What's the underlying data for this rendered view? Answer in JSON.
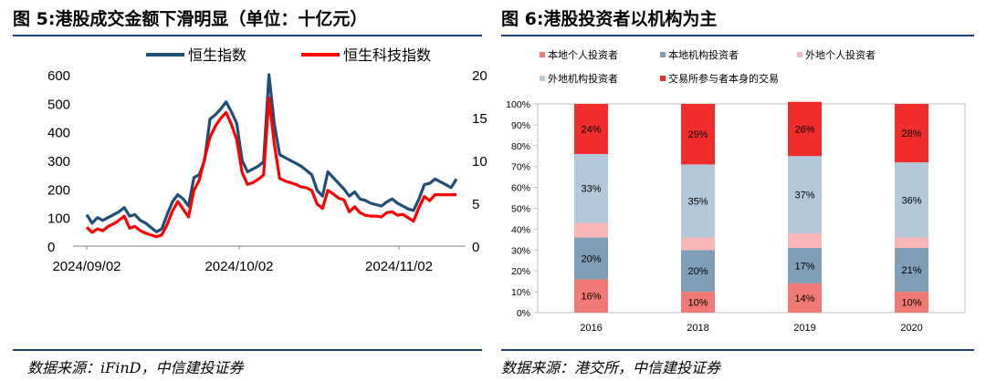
{
  "left": {
    "title": "图 5:港股成交金额下滑明显（单位：十亿元）",
    "source": "数据来源：iFinD，中信建投证券"
  },
  "right": {
    "title": "图 6:港股投资者以机构为主",
    "source": "数据来源：港交所，中信建投证券"
  },
  "chart_data": [
    {
      "type": "line",
      "xlabel": "",
      "ylabel": "",
      "x_tick_labels": [
        "2024/09/02",
        "2024/10/02",
        "2024/11/02"
      ],
      "y_left_ticks": [
        0,
        100,
        200,
        300,
        400,
        500,
        600
      ],
      "y_right_ticks": [
        0,
        5,
        10,
        15,
        20
      ],
      "ylim_left": [
        0,
        600
      ],
      "ylim_right": [
        0,
        20
      ],
      "legend_position": "top-center",
      "grid": false,
      "series": [
        {
          "name": "恒生指数",
          "axis": "left",
          "color": "#1f4e79",
          "values": [
            110,
            80,
            100,
            90,
            100,
            110,
            120,
            135,
            105,
            110,
            90,
            80,
            65,
            50,
            60,
            110,
            155,
            180,
            165,
            140,
            240,
            250,
            300,
            445,
            460,
            480,
            505,
            470,
            430,
            300,
            260,
            270,
            280,
            295,
            600,
            430,
            320,
            310,
            300,
            290,
            280,
            265,
            250,
            195,
            175,
            260,
            240,
            220,
            200,
            175,
            190,
            165,
            160,
            150,
            145,
            140,
            155,
            165,
            150,
            140,
            130,
            125,
            165,
            215,
            220,
            235,
            225,
            215,
            205,
            235
          ]
        },
        {
          "name": "恒生科技指数",
          "axis": "right",
          "color": "#ff0000",
          "values": [
            2.2,
            1.6,
            2.0,
            1.8,
            2.3,
            2.6,
            3.0,
            3.5,
            2.1,
            2.3,
            1.8,
            1.5,
            1.3,
            1.1,
            1.3,
            2.5,
            4.1,
            5.2,
            4.3,
            3.4,
            6.5,
            7.7,
            10.2,
            12.7,
            14.0,
            14.9,
            15.6,
            14.2,
            12.4,
            8.6,
            7.2,
            7.4,
            7.8,
            8.3,
            17.3,
            12.0,
            7.9,
            7.6,
            7.4,
            7.2,
            6.9,
            6.8,
            6.5,
            4.9,
            4.4,
            6.5,
            6.1,
            5.6,
            5.4,
            4.0,
            4.6,
            3.9,
            3.6,
            3.5,
            3.5,
            3.4,
            3.9,
            4.0,
            3.6,
            3.7,
            3.3,
            2.9,
            4.5,
            5.8,
            5.3,
            6.0,
            6.0,
            6.0,
            6.0,
            6.0
          ]
        }
      ]
    },
    {
      "type": "bar",
      "stacked": true,
      "xlabel": "",
      "ylabel": "",
      "categories": [
        "2016",
        "2018",
        "2019",
        "2020"
      ],
      "ylim": [
        0,
        100
      ],
      "y_tick_labels": [
        "0%",
        "10%",
        "20%",
        "30%",
        "40%",
        "50%",
        "60%",
        "70%",
        "80%",
        "90%",
        "100%"
      ],
      "legend_position": "top",
      "grid": false,
      "series": [
        {
          "name": "本地个人投资者",
          "color": "#f17a76",
          "values": [
            16,
            10,
            14,
            10
          ],
          "labels": [
            "16%",
            "10%",
            "14%",
            "10%"
          ]
        },
        {
          "name": "本地机构投资者",
          "color": "#7f9fb9",
          "values": [
            20,
            20,
            17,
            21
          ],
          "labels": [
            "20%",
            "20%",
            "17%",
            "21%"
          ]
        },
        {
          "name": "外地个人投资者",
          "color": "#f8b6b6",
          "values": [
            7,
            6,
            7,
            5
          ],
          "labels": [
            "",
            "",
            "",
            ""
          ]
        },
        {
          "name": "外地机构投资者",
          "color": "#b3c8d8",
          "values": [
            33,
            35,
            37,
            36
          ],
          "labels": [
            "33%",
            "35%",
            "37%",
            "36%"
          ]
        },
        {
          "name": "交易所参与者本身的交易",
          "color": "#f02c2c",
          "values": [
            24,
            29,
            26,
            28
          ],
          "labels": [
            "24%",
            "29%",
            "26%",
            "28%"
          ]
        }
      ]
    }
  ]
}
